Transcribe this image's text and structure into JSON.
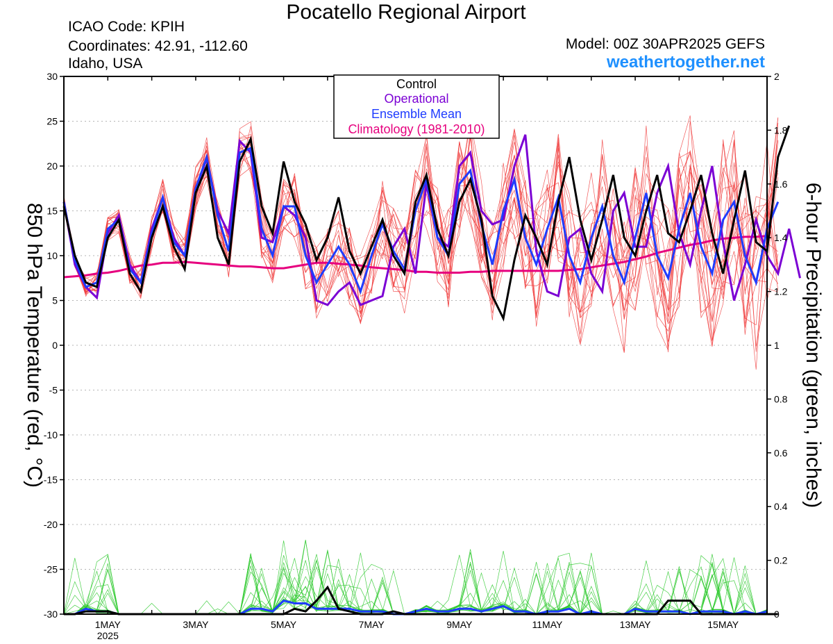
{
  "header": {
    "title": "Pocatello Regional Airport",
    "icao": "ICAO Code: KPIH",
    "coordinates": "Coordinates: 42.91, -112.60",
    "region": "Idaho, USA",
    "model": "Model: 00Z 30APR2025 GEFS",
    "site": "weathertogether.net"
  },
  "colors": {
    "control": "#000000",
    "operational": "#7b00d4",
    "ensemble_mean": "#1e3cff",
    "climatology": "#e6007e",
    "member_temp": "#f03c3c",
    "member_precip": "#28c828",
    "site": "#1e90ff",
    "grid": "#b4b4b4"
  },
  "chart_data": {
    "type": "line",
    "x_start": "2025-04-30 00Z",
    "x_step_hours": 6,
    "xlim_steps": [
      0,
      64
    ],
    "x_ticks": [
      {
        "step": 4,
        "label": "1MAY",
        "sublabel": "2025"
      },
      {
        "step": 12,
        "label": "3MAY"
      },
      {
        "step": 20,
        "label": "5MAY"
      },
      {
        "step": 28,
        "label": "7MAY"
      },
      {
        "step": 36,
        "label": "9MAY"
      },
      {
        "step": 44,
        "label": "11MAY"
      },
      {
        "step": 52,
        "label": "13MAY"
      },
      {
        "step": 60,
        "label": "15MAY"
      }
    ],
    "y_left": {
      "label": "850 hPa Temperature (red, °C)",
      "lim": [
        -30,
        30
      ],
      "ticks": [
        30,
        25,
        20,
        15,
        10,
        5,
        0,
        -5,
        -10,
        -15,
        -20,
        -25,
        -30
      ]
    },
    "y_right": {
      "label": "6-hour Precipitation (green, inches)",
      "lim": [
        0,
        2
      ],
      "ticks": [
        2,
        1.8,
        1.6,
        1.4,
        1.2,
        1,
        0.8,
        0.6,
        0.4,
        0.2,
        0
      ]
    },
    "grid": "dotted horizontal",
    "legend": {
      "position": "top-center",
      "entries": [
        "Control",
        "Operational",
        "Ensemble Mean",
        "Climatology (1981-2010)"
      ]
    },
    "temperature_series": [
      {
        "name": "Control",
        "values": [
          15.5,
          10,
          7,
          6.5,
          12,
          14,
          8,
          6,
          12,
          15.5,
          11,
          8.5,
          17,
          20,
          12,
          9,
          20.5,
          23,
          15.5,
          12.5,
          20.5,
          16,
          13.5,
          9.5,
          12,
          16.5,
          10.5,
          8,
          11,
          14,
          10,
          8,
          16,
          19,
          13,
          10,
          16,
          18.5,
          14,
          5.5,
          3,
          9.5,
          14.5,
          12,
          9,
          16,
          21,
          14,
          9.5,
          14,
          19,
          12,
          10,
          15,
          19,
          12.5,
          11.5,
          15,
          19,
          12.5,
          8,
          14,
          19.5,
          11.5,
          10.5,
          21,
          24.5
        ]
      },
      {
        "name": "Operational",
        "values": [
          16,
          9,
          6.5,
          5.3,
          12.5,
          14.5,
          9,
          7,
          13,
          16.5,
          12,
          10,
          17.5,
          20.8,
          15,
          12.5,
          22.8,
          21.5,
          12,
          11.5,
          15.5,
          14.5,
          12,
          5,
          4.5,
          6,
          7,
          4.5,
          5,
          5.5,
          11,
          13,
          8,
          18,
          12,
          11,
          20,
          21.5,
          15,
          13.5,
          14,
          20,
          23.5,
          10.5,
          6,
          5.5,
          12,
          13,
          8,
          6,
          15,
          17,
          11,
          11,
          17,
          20,
          12.5,
          9,
          15,
          20,
          11.5,
          5,
          9,
          14,
          10,
          8,
          13,
          7.5
        ]
      },
      {
        "name": "Ensemble Mean",
        "values": [
          16,
          9.5,
          6.5,
          7,
          13,
          14,
          8.5,
          7,
          12.5,
          16.5,
          11.5,
          10,
          17.5,
          21,
          14.5,
          10.5,
          21.5,
          22,
          13,
          10,
          15.5,
          15.5,
          10,
          7,
          9,
          11,
          9,
          6,
          10,
          13.5,
          10.5,
          8.5,
          15,
          18.5,
          12,
          10,
          18,
          19.5,
          13.5,
          9,
          15,
          18.5,
          12,
          9,
          13,
          16.5,
          10,
          7,
          12,
          15.5,
          10,
          7,
          12,
          17,
          10,
          7.5,
          13,
          17,
          11,
          8,
          14,
          16,
          10,
          7,
          13,
          16
        ]
      },
      {
        "name": "Climatology (1981-2010)",
        "values": [
          7.6,
          7.7,
          7.8,
          8.0,
          8.1,
          8.3,
          8.6,
          8.9,
          9.0,
          9.2,
          9.2,
          9.3,
          9.2,
          9.1,
          9.0,
          8.9,
          8.8,
          8.8,
          8.7,
          8.6,
          8.6,
          8.8,
          9.0,
          9.2,
          9.2,
          9.1,
          9.0,
          8.9,
          8.7,
          8.6,
          8.5,
          8.4,
          8.2,
          8.2,
          8.1,
          8.1,
          8.1,
          8.2,
          8.2,
          8.3,
          8.3,
          8.3,
          8.3,
          8.3,
          8.3,
          8.3,
          8.4,
          8.5,
          8.7,
          8.9,
          9.1,
          9.3,
          9.6,
          9.9,
          10.3,
          10.6,
          10.9,
          11.2,
          11.4,
          11.7,
          11.9,
          12.0,
          12.1,
          12.1,
          12.2
        ]
      }
    ],
    "precip_series": [
      {
        "name": "Control",
        "values": [
          0,
          0,
          0.01,
          0.01,
          0.01,
          0,
          0,
          0,
          0,
          0,
          0,
          0,
          0,
          0,
          0,
          0,
          0,
          0,
          0,
          0,
          0,
          0.02,
          0.01,
          0.05,
          0.1,
          0.02,
          0.01,
          0,
          0,
          0,
          0.01,
          0,
          0,
          0,
          0,
          0,
          0,
          0,
          0,
          0,
          0,
          0,
          0,
          0,
          0,
          0,
          0,
          0,
          0,
          0,
          0,
          0,
          0,
          0,
          0,
          0.05,
          0.05,
          0.05,
          0,
          0,
          0,
          0,
          0,
          0,
          0,
          0
        ]
      },
      {
        "name": "Ensemble Mean",
        "values": [
          0,
          0,
          0.02,
          0.01,
          0.01,
          0,
          0,
          0,
          0,
          0,
          0,
          0,
          0,
          0,
          0,
          0,
          0,
          0.02,
          0.02,
          0.01,
          0.05,
          0.04,
          0.04,
          0.02,
          0.02,
          0.02,
          0.02,
          0.01,
          0.01,
          0.01,
          0,
          0,
          0.01,
          0.02,
          0.01,
          0.01,
          0.02,
          0.02,
          0.01,
          0.02,
          0.03,
          0.01,
          0.01,
          0,
          0.01,
          0.01,
          0.02,
          0,
          0.01,
          0,
          0,
          0,
          0.02,
          0.01,
          0.01,
          0.01,
          0.01,
          0,
          0.01,
          0.01,
          0.01,
          0,
          0.01,
          0,
          0.01
        ]
      }
    ]
  }
}
